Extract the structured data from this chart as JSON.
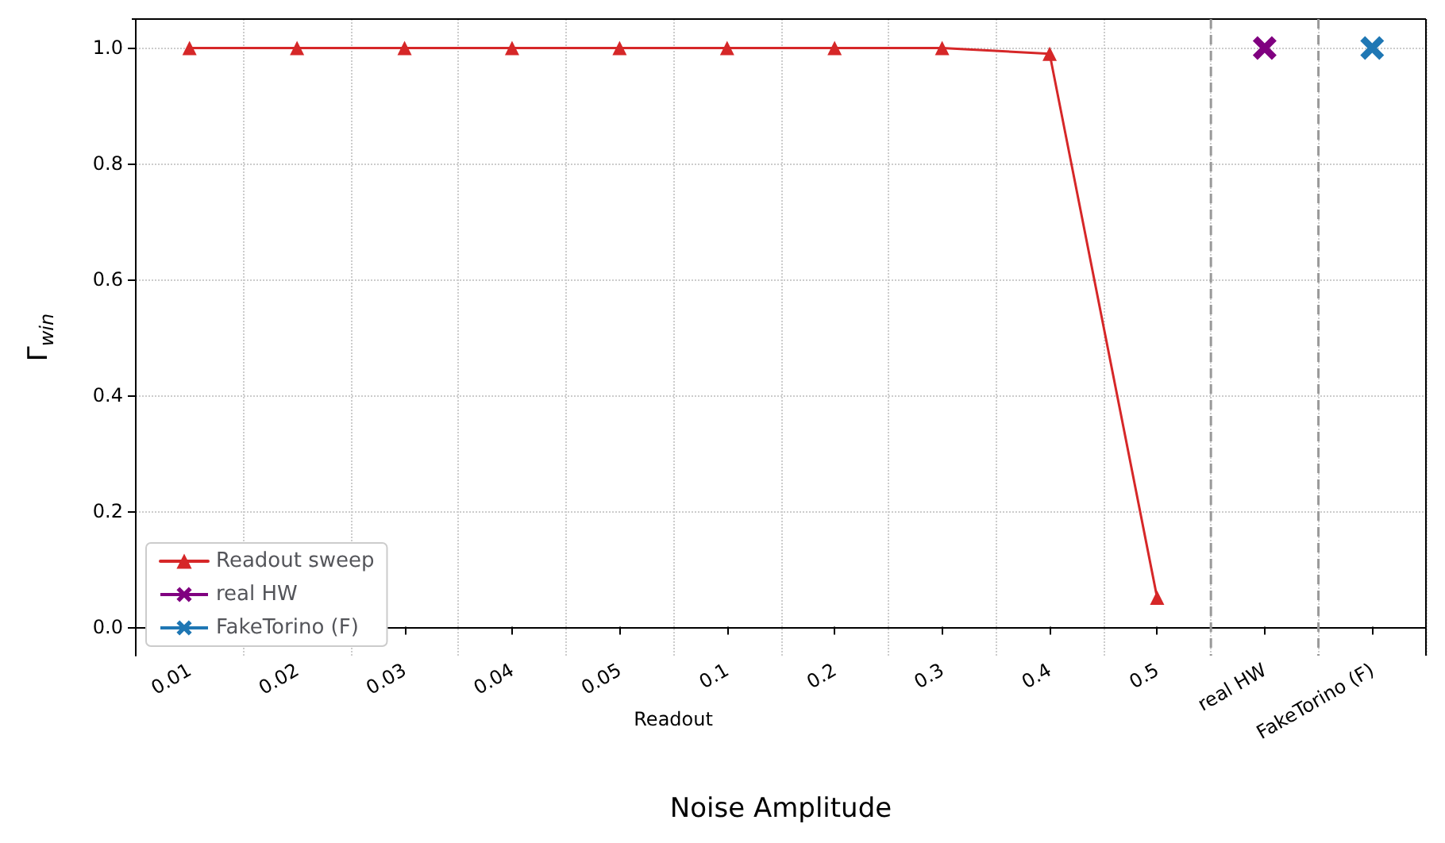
{
  "chart_data": {
    "type": "line",
    "xlabel": "Noise Amplitude",
    "ylabel": "Γ$_{win}$",
    "categories": [
      "0.01",
      "0.02",
      "0.03",
      "0.04",
      "0.05",
      "0.1",
      "0.2",
      "0.3",
      "0.4",
      "0.5",
      "real HW",
      "FakeTorino (F)"
    ],
    "series": [
      {
        "name": "Readout sweep",
        "color": "#d62728",
        "marker": "triangle",
        "values": [
          1,
          1,
          1,
          1,
          1,
          1,
          1,
          1,
          0.99,
          0.05,
          null,
          null
        ]
      },
      {
        "name": "real HW",
        "color": "#800080",
        "marker": "cross",
        "type": "scatter",
        "values": [
          null,
          null,
          null,
          null,
          null,
          null,
          null,
          null,
          null,
          null,
          1,
          null
        ]
      },
      {
        "name": "FakeTorino (F)",
        "color": "#1f77b4",
        "marker": "cross",
        "type": "scatter",
        "values": [
          null,
          null,
          null,
          null,
          null,
          null,
          null,
          null,
          null,
          null,
          null,
          1
        ]
      }
    ],
    "ylim": [
      -0.05,
      1.05
    ],
    "yticks": [
      {
        "value": 0,
        "label": "0.0"
      },
      {
        "value": 0.2,
        "label": "0.2"
      },
      {
        "value": 0.4,
        "label": "0.4"
      },
      {
        "value": 0.6,
        "label": "0.6"
      },
      {
        "value": 0.8,
        "label": "0.8"
      },
      {
        "value": 1,
        "label": "1.0"
      }
    ],
    "annotations": [
      "Readout"
    ],
    "grid": true,
    "legend": "bottom left",
    "line_style": "solid"
  }
}
